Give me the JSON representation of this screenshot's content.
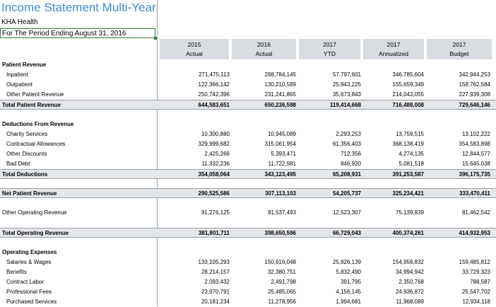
{
  "title": "Income Statement Multi-Year",
  "org": "KHA Health",
  "period": "For The Period Ending August 31, 2016",
  "columns": [
    {
      "year": "2015",
      "type": "Actual"
    },
    {
      "year": "2016",
      "type": "Actual"
    },
    {
      "year": "2017",
      "type": "YTD"
    },
    {
      "year": "2017",
      "type": "Annualized"
    },
    {
      "year": "2017",
      "type": "Budget"
    }
  ],
  "rows": [
    {
      "label": "Patient Revenue",
      "kind": "section",
      "values": []
    },
    {
      "label": "Inpatient",
      "kind": "item",
      "values": [
        "271,475,113",
        "288,784,145",
        "57,797,601",
        "346,785,604",
        "342,944,253"
      ]
    },
    {
      "label": "Outpatient",
      "kind": "item",
      "values": [
        "122,366,142",
        "130,210,589",
        "25,943,225",
        "155,659,349",
        "158,762,584"
      ]
    },
    {
      "label": "Other Patient Revenue",
      "kind": "item",
      "values": [
        "250,742,396",
        "231,241,865",
        "35,673,843",
        "214,043,055",
        "227,939,308"
      ]
    },
    {
      "label": "Total Patient Revenue",
      "kind": "total",
      "values": [
        "644,583,651",
        "650,236,598",
        "119,414,668",
        "716,488,008",
        "729,646,146"
      ]
    },
    {
      "label": "Deductions From Revenue",
      "kind": "section",
      "values": []
    },
    {
      "label": "Charity Services",
      "kind": "item",
      "values": [
        "10,300,880",
        "10,945,089",
        "2,293,253",
        "13,759,515",
        "13,102,222"
      ]
    },
    {
      "label": "Contractual Allowances",
      "kind": "item",
      "values": [
        "329,999,682",
        "315,061,954",
        "61,356,403",
        "368,138,419",
        "354,583,898"
      ]
    },
    {
      "label": "Other Discounts",
      "kind": "item",
      "values": [
        "2,425,266",
        "5,393,471",
        "712,356",
        "4,274,135",
        "12,844,577"
      ]
    },
    {
      "label": "Bad Debt",
      "kind": "item",
      "values": [
        "11,332,236",
        "11,722,981",
        "846,920",
        "5,081,518",
        "15,645,038"
      ]
    },
    {
      "label": "Total Deductions",
      "kind": "total",
      "values": [
        "354,058,064",
        "343,123,495",
        "65,208,931",
        "391,253,587",
        "396,175,735"
      ]
    },
    {
      "label": "Net Patient Revenue",
      "kind": "total",
      "values": [
        "290,525,586",
        "307,113,103",
        "54,205,737",
        "325,234,421",
        "333,470,411"
      ]
    },
    {
      "label": "Other Operating Revenue",
      "kind": "item-flush",
      "values": [
        "91,276,125",
        "91,537,493",
        "12,523,307",
        "75,139,839",
        "81,462,542"
      ]
    },
    {
      "label": "Total Operating Revenue",
      "kind": "total",
      "values": [
        "381,801,711",
        "398,650,596",
        "66,729,043",
        "400,374,261",
        "414,932,953"
      ]
    },
    {
      "label": "Operating Expenses",
      "kind": "section",
      "values": []
    },
    {
      "label": "Salaries & Wages",
      "kind": "item",
      "values": [
        "133,105,293",
        "150,616,048",
        "25,826,139",
        "154,956,832",
        "159,485,812"
      ]
    },
    {
      "label": "Benefits",
      "kind": "item",
      "values": [
        "28,214,157",
        "32,380,751",
        "5,832,490",
        "34,994,942",
        "33,729,323"
      ]
    },
    {
      "label": "Contract Labor",
      "kind": "item",
      "values": [
        "2,093,432",
        "2,491,798",
        "391,795",
        "2,350,768",
        "788,587"
      ]
    },
    {
      "label": "Professional Fees",
      "kind": "item",
      "values": [
        "23,970,791",
        "25,485,065",
        "4,156,145",
        "24,936,872",
        "25,547,702"
      ]
    },
    {
      "label": "Purchased Services",
      "kind": "item",
      "values": [
        "20,181,234",
        "11,278,956",
        "1,994,681",
        "11,968,089",
        "12,934,118"
      ]
    }
  ]
}
